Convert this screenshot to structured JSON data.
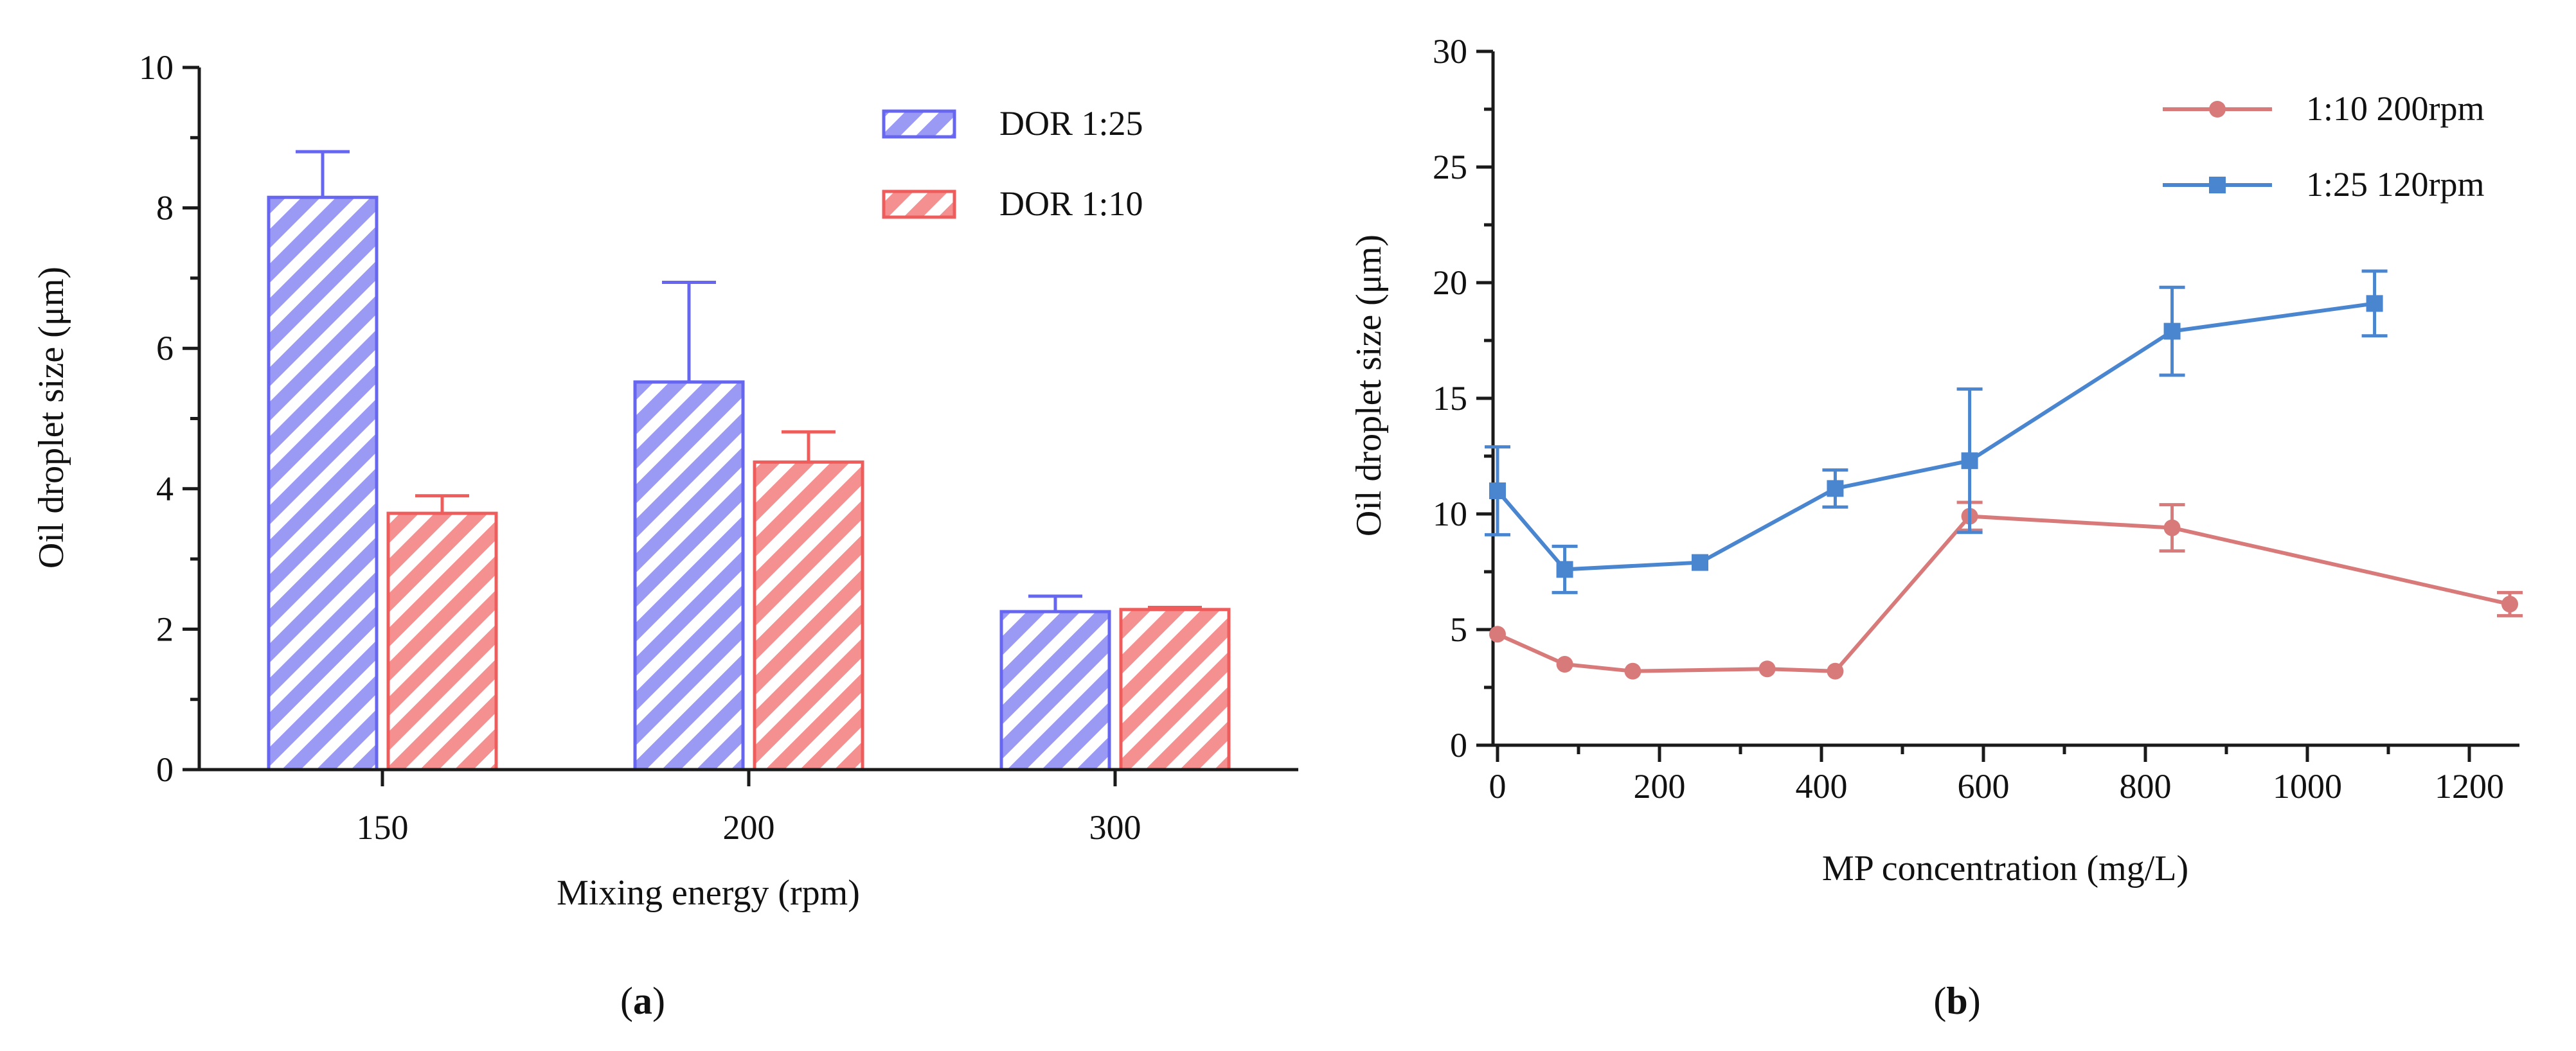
{
  "chart_data": [
    {
      "type": "bar",
      "panel_label": "a",
      "title": "",
      "xlabel": "Mixing energy (rpm)",
      "ylabel": "Oil droplet size (μm)",
      "ylim": [
        0,
        10
      ],
      "yticks": [
        "0",
        "2",
        "4",
        "6",
        "8",
        "10"
      ],
      "categories": [
        "150",
        "200",
        "300"
      ],
      "legend_position": "top-right",
      "series": [
        {
          "name": "DOR 1:25",
          "values": [
            8.15,
            5.52,
            2.25
          ],
          "errors": [
            0.65,
            1.42,
            0.22
          ],
          "color": "#6666f0",
          "fill": "#9a9af5"
        },
        {
          "name": "DOR 1:10",
          "values": [
            3.65,
            4.38,
            2.28
          ],
          "errors": [
            0.25,
            0.43,
            0.03
          ],
          "color": "#ee5c5c",
          "fill": "#f49090"
        }
      ]
    },
    {
      "type": "line",
      "panel_label": "b",
      "title": "",
      "xlabel": "MP concentration (mg/L)",
      "ylabel": "Oil droplet size (μm)",
      "xlim": [
        0,
        1250
      ],
      "ylim": [
        0,
        30
      ],
      "xticks": [
        "0",
        "200",
        "400",
        "600",
        "800",
        "1000",
        "1200"
      ],
      "yticks": [
        "0",
        "5",
        "10",
        "15",
        "20",
        "25",
        "30"
      ],
      "legend_position": "top-right",
      "series": [
        {
          "name": "1:10 200rpm",
          "marker": "circle",
          "color": "#d97a7a",
          "x": [
            0,
            83,
            167,
            333,
            417,
            583,
            833,
            1250
          ],
          "y": [
            4.8,
            3.5,
            3.2,
            3.3,
            3.2,
            9.9,
            9.4,
            6.1
          ],
          "errors": [
            0,
            0,
            0,
            0,
            0,
            0.6,
            1.0,
            0.5
          ]
        },
        {
          "name": "1:25 120rpm",
          "marker": "square",
          "color": "#4a86d0",
          "x": [
            0,
            83,
            250,
            417,
            583,
            833,
            1083
          ],
          "y": [
            11.0,
            7.6,
            7.9,
            11.1,
            12.3,
            17.9,
            19.1
          ],
          "errors": [
            1.9,
            1.0,
            0,
            0.8,
            3.1,
            1.9,
            1.4
          ]
        }
      ]
    }
  ]
}
